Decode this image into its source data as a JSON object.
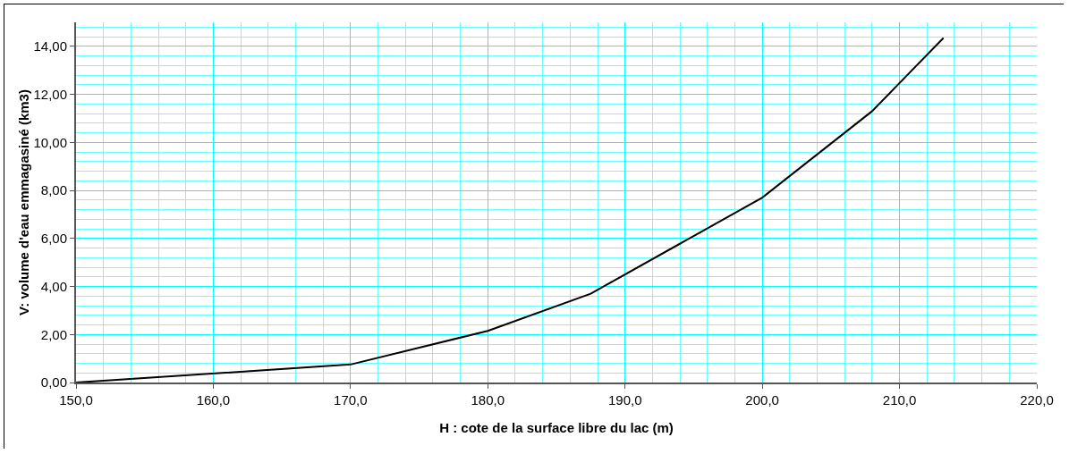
{
  "chart_data": {
    "type": "line",
    "xlabel": "H : cote de la surface libre du lac (m)",
    "ylabel": "V: volume d'eau emmagasiné (km3)",
    "x": [
      150,
      170,
      180,
      187.5,
      200,
      208,
      213.2
    ],
    "series": [
      {
        "color": "#000000",
        "values": [
          0,
          0.75,
          2.15,
          3.7,
          7.7,
          11.3,
          14.35
        ]
      }
    ],
    "xlim": [
      150,
      220
    ],
    "xticks": [
      {
        "value": 150,
        "label": "150,0"
      },
      {
        "value": 152,
        "label": null
      },
      {
        "value": 154,
        "label": null
      },
      {
        "value": 156,
        "label": null
      },
      {
        "value": 158,
        "label": null
      },
      {
        "value": 160,
        "label": "160,0"
      },
      {
        "value": 162,
        "label": null
      },
      {
        "value": 164,
        "label": null
      },
      {
        "value": 166,
        "label": null
      },
      {
        "value": 168,
        "label": null
      },
      {
        "value": 170,
        "label": "170,0"
      },
      {
        "value": 172,
        "label": null
      },
      {
        "value": 174,
        "label": null
      },
      {
        "value": 176,
        "label": null
      },
      {
        "value": 178,
        "label": null
      },
      {
        "value": 180,
        "label": "180,0"
      },
      {
        "value": 182,
        "label": null
      },
      {
        "value": 184,
        "label": null
      },
      {
        "value": 186,
        "label": null
      },
      {
        "value": 188,
        "label": null
      },
      {
        "value": 190,
        "label": "190,0"
      },
      {
        "value": 192,
        "label": null
      },
      {
        "value": 194,
        "label": null
      },
      {
        "value": 196,
        "label": null
      },
      {
        "value": 198,
        "label": null
      },
      {
        "value": 200,
        "label": "200,0"
      },
      {
        "value": 202,
        "label": null
      },
      {
        "value": 204,
        "label": null
      },
      {
        "value": 206,
        "label": null
      },
      {
        "value": 208,
        "label": null
      },
      {
        "value": 210,
        "label": "210,0"
      },
      {
        "value": 212,
        "label": null
      },
      {
        "value": 214,
        "label": null
      },
      {
        "value": 216,
        "label": null
      },
      {
        "value": 218,
        "label": null
      },
      {
        "value": 220,
        "label": "220,0"
      }
    ],
    "ylim": [
      0,
      15
    ],
    "yticks": [
      {
        "value": 0,
        "label": "0,00"
      },
      {
        "value": 0.4,
        "label": null
      },
      {
        "value": 0.8,
        "label": null
      },
      {
        "value": 1.2,
        "label": null
      },
      {
        "value": 1.6,
        "label": null
      },
      {
        "value": 2,
        "label": "2,00"
      },
      {
        "value": 2.4,
        "label": null
      },
      {
        "value": 2.8,
        "label": null
      },
      {
        "value": 3.2,
        "label": null
      },
      {
        "value": 3.6,
        "label": null
      },
      {
        "value": 4,
        "label": "4,00"
      },
      {
        "value": 4.4,
        "label": null
      },
      {
        "value": 4.8,
        "label": null
      },
      {
        "value": 5.2,
        "label": null
      },
      {
        "value": 5.6,
        "label": null
      },
      {
        "value": 6,
        "label": "6,00"
      },
      {
        "value": 6.4,
        "label": null
      },
      {
        "value": 6.8,
        "label": null
      },
      {
        "value": 7.2,
        "label": null
      },
      {
        "value": 7.6,
        "label": null
      },
      {
        "value": 8,
        "label": "8,00"
      },
      {
        "value": 8.4,
        "label": null
      },
      {
        "value": 8.8,
        "label": null
      },
      {
        "value": 9.2,
        "label": null
      },
      {
        "value": 9.6,
        "label": null
      },
      {
        "value": 10,
        "label": "10,00"
      },
      {
        "value": 10.4,
        "label": null
      },
      {
        "value": 10.8,
        "label": null
      },
      {
        "value": 11.2,
        "label": null
      },
      {
        "value": 11.6,
        "label": null
      },
      {
        "value": 12,
        "label": "12,00"
      },
      {
        "value": 12.4,
        "label": null
      },
      {
        "value": 12.8,
        "label": null
      },
      {
        "value": 13.2,
        "label": null
      },
      {
        "value": 13.6,
        "label": null
      },
      {
        "value": 14,
        "label": "14,00"
      },
      {
        "value": 14.4,
        "label": null
      },
      {
        "value": 14.8,
        "label": null
      }
    ],
    "grid": true,
    "marker": "none",
    "line_style": "solid"
  }
}
